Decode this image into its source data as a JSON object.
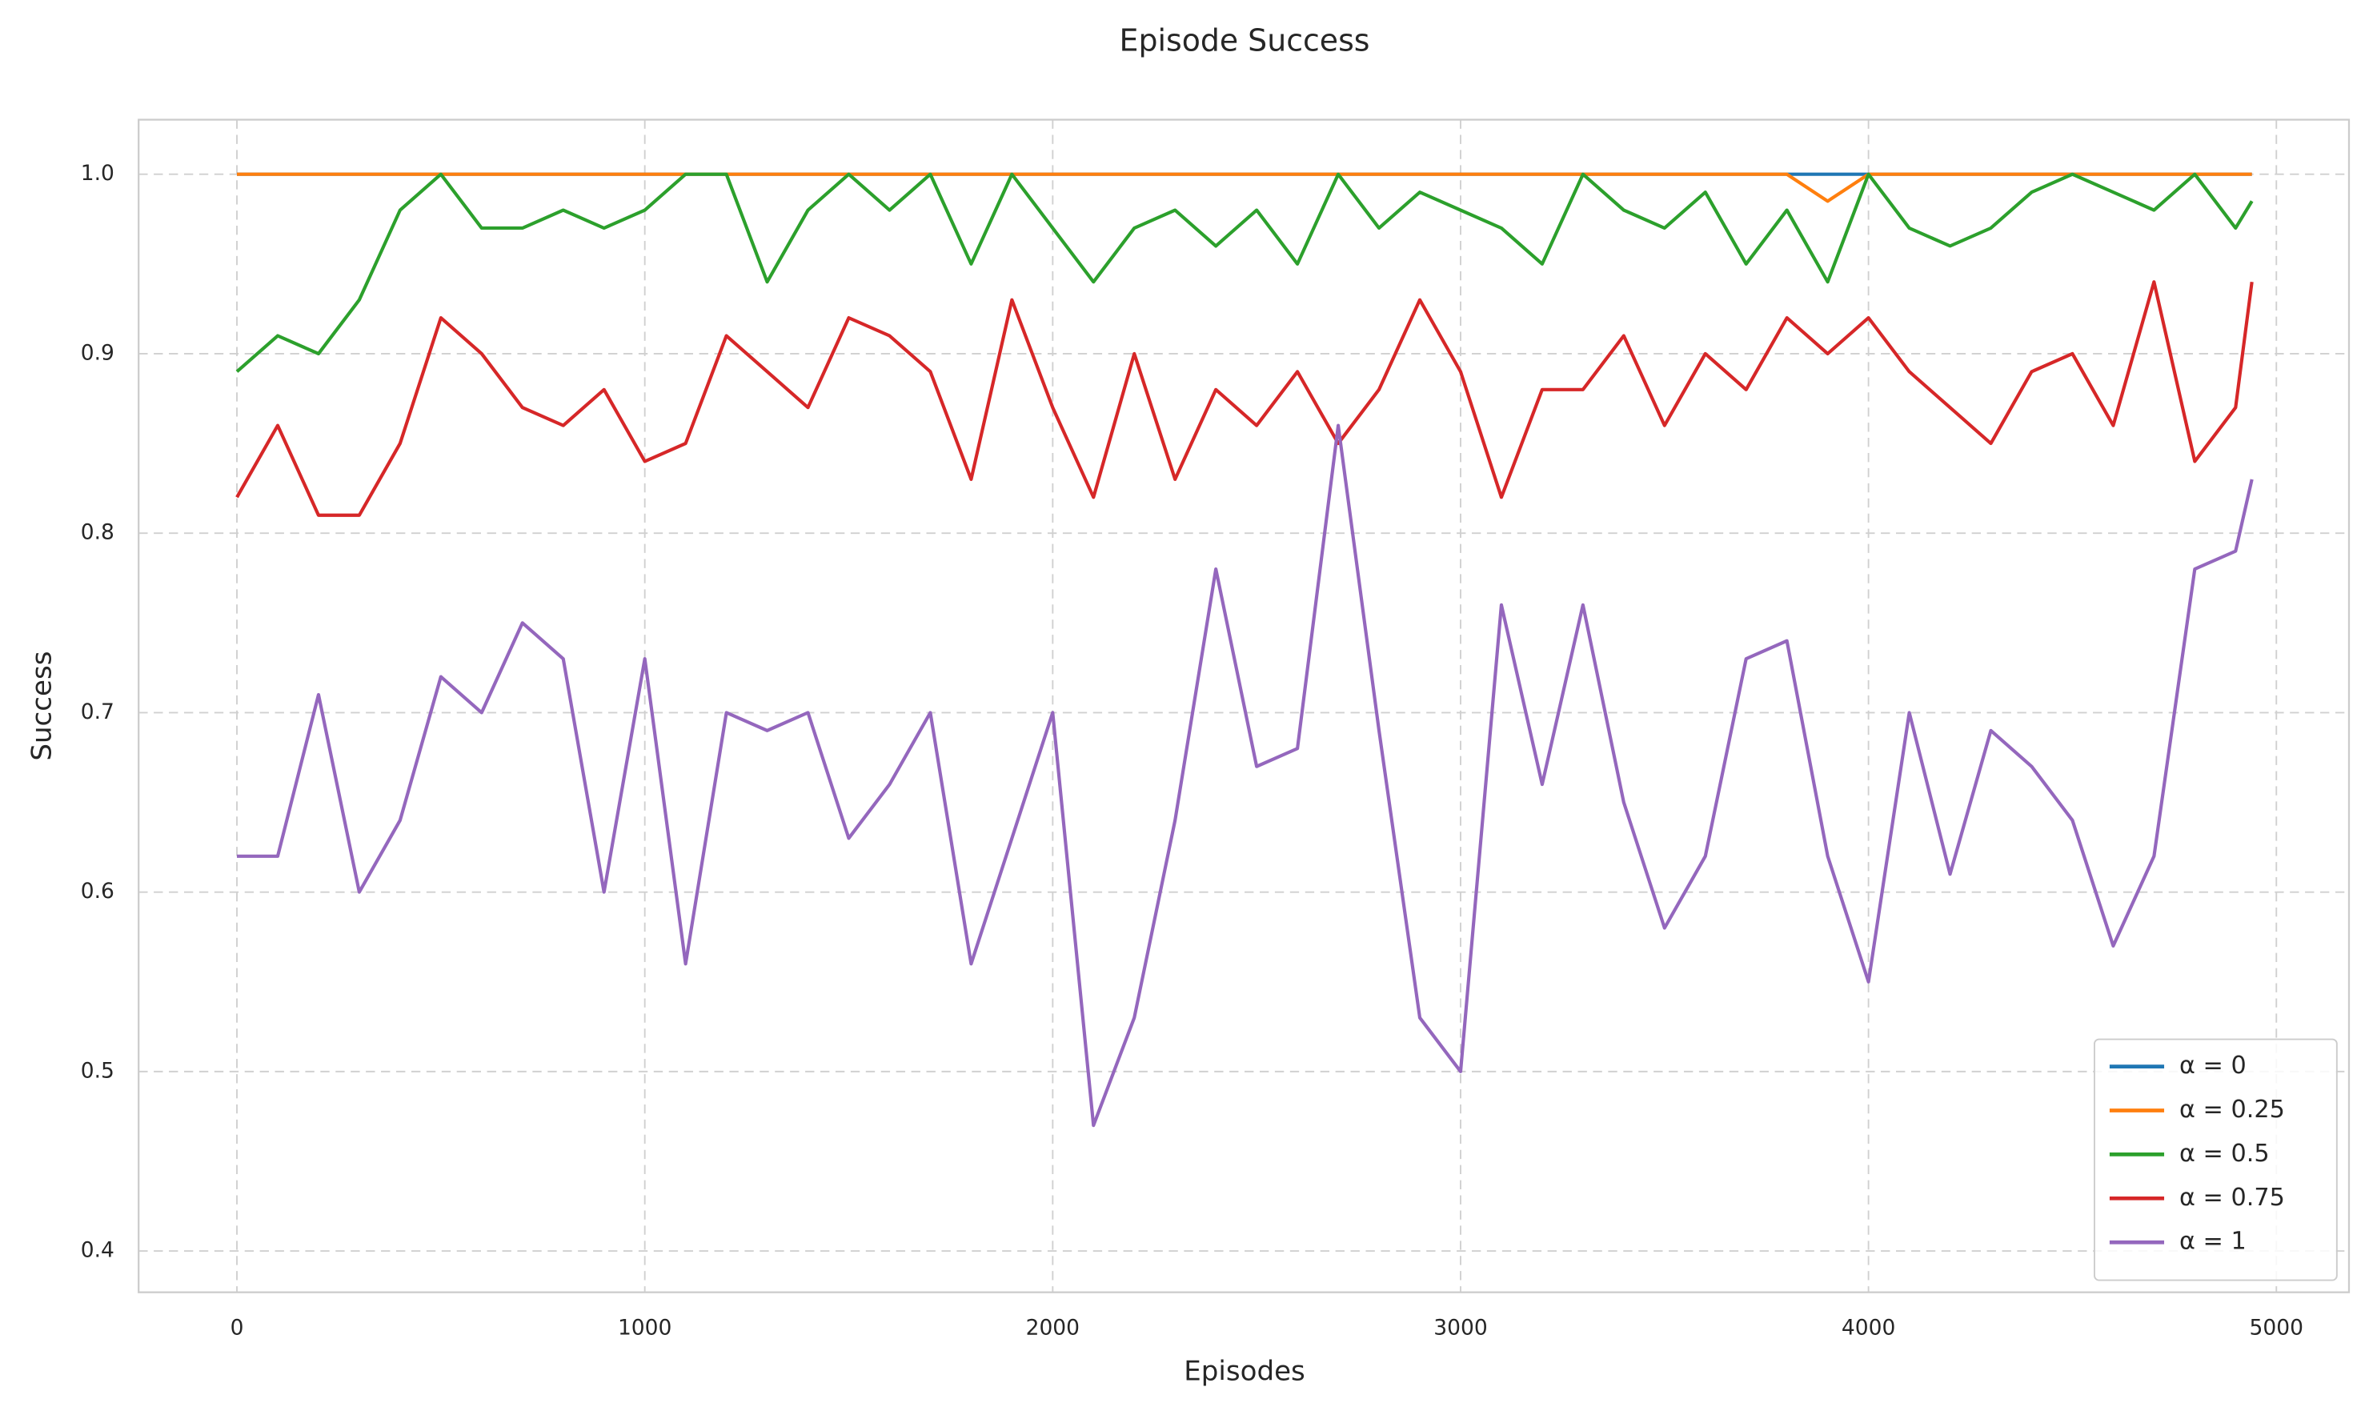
{
  "chart_data": {
    "type": "line",
    "title": "Episode Success",
    "xlabel": "Episodes",
    "ylabel": "Success",
    "x": [
      0,
      100,
      200,
      300,
      400,
      500,
      600,
      700,
      800,
      900,
      1000,
      1100,
      1200,
      1300,
      1400,
      1500,
      1600,
      1700,
      1800,
      1900,
      2000,
      2100,
      2200,
      2300,
      2400,
      2500,
      2600,
      2700,
      2800,
      2900,
      3000,
      3100,
      3200,
      3300,
      3400,
      3500,
      3600,
      3700,
      3800,
      3900,
      4000,
      4100,
      4200,
      4300,
      4400,
      4500,
      4600,
      4700,
      4800,
      4900,
      4940
    ],
    "series": [
      {
        "name": "α = 0",
        "color": "#1f77b4",
        "values": [
          1,
          1,
          1,
          1,
          1,
          1,
          1,
          1,
          1,
          1,
          1,
          1,
          1,
          1,
          1,
          1,
          1,
          1,
          1,
          1,
          1,
          1,
          1,
          1,
          1,
          1,
          1,
          1,
          1,
          1,
          1,
          1,
          1,
          1,
          1,
          1,
          1,
          1,
          1,
          1,
          1,
          1,
          1,
          1,
          1,
          1,
          1,
          1,
          1,
          1,
          1
        ]
      },
      {
        "name": "α = 0.25",
        "color": "#ff7f0e",
        "values": [
          1,
          1,
          1,
          1,
          1,
          1,
          1,
          1,
          1,
          1,
          1,
          1,
          1,
          1,
          1,
          1,
          1,
          1,
          1,
          1,
          1,
          1,
          1,
          1,
          1,
          1,
          1,
          1,
          1,
          1,
          1,
          1,
          1,
          1,
          1,
          1,
          1,
          1,
          1,
          0.985,
          1,
          1,
          1,
          1,
          1,
          1,
          1,
          1,
          1,
          1,
          1
        ]
      },
      {
        "name": "α = 0.5",
        "color": "#2ca02c",
        "values": [
          0.89,
          0.91,
          0.9,
          0.93,
          0.98,
          1,
          0.97,
          0.97,
          0.98,
          0.97,
          0.98,
          1,
          1,
          0.94,
          0.98,
          1,
          0.98,
          1,
          0.95,
          1,
          0.97,
          0.94,
          0.97,
          0.98,
          0.96,
          0.98,
          0.95,
          1,
          0.97,
          0.99,
          0.98,
          0.97,
          0.95,
          1,
          0.98,
          0.97,
          0.99,
          0.95,
          0.98,
          0.94,
          1,
          0.97,
          0.96,
          0.97,
          0.99,
          1,
          0.99,
          0.98,
          1,
          0.97,
          0.985
        ]
      },
      {
        "name": "α = 0.75",
        "color": "#d62728",
        "values": [
          0.82,
          0.86,
          0.81,
          0.81,
          0.85,
          0.92,
          0.9,
          0.87,
          0.86,
          0.88,
          0.84,
          0.85,
          0.91,
          0.89,
          0.87,
          0.92,
          0.91,
          0.89,
          0.83,
          0.93,
          0.87,
          0.82,
          0.9,
          0.83,
          0.88,
          0.86,
          0.89,
          0.85,
          0.88,
          0.93,
          0.89,
          0.82,
          0.88,
          0.88,
          0.91,
          0.86,
          0.9,
          0.88,
          0.92,
          0.9,
          0.92,
          0.89,
          0.87,
          0.85,
          0.89,
          0.9,
          0.86,
          0.94,
          0.84,
          0.87,
          0.94
        ]
      },
      {
        "name": "α = 1",
        "color": "#9467bd",
        "values": [
          0.62,
          0.62,
          0.71,
          0.6,
          0.64,
          0.72,
          0.7,
          0.75,
          0.73,
          0.6,
          0.73,
          0.56,
          0.7,
          0.69,
          0.7,
          0.63,
          0.66,
          0.7,
          0.56,
          0.63,
          0.7,
          0.47,
          0.53,
          0.64,
          0.78,
          0.67,
          0.68,
          0.86,
          0.69,
          0.53,
          0.5,
          0.76,
          0.66,
          0.76,
          0.65,
          0.58,
          0.62,
          0.73,
          0.74,
          0.62,
          0.55,
          0.7,
          0.61,
          0.69,
          0.67,
          0.64,
          0.57,
          0.62,
          0.78,
          0.79,
          0.83
        ]
      }
    ],
    "xlim": [
      -241,
      5178
    ],
    "ylim": [
      0.377,
      1.0304
    ],
    "xticks": [
      0,
      1000,
      2000,
      3000,
      4000,
      5000
    ],
    "yticks": [
      0.4,
      0.5,
      0.6,
      0.7,
      0.8,
      0.9,
      {
        "value": 1,
        "label": "1.0"
      }
    ],
    "grid": true,
    "legend": "lower right"
  }
}
